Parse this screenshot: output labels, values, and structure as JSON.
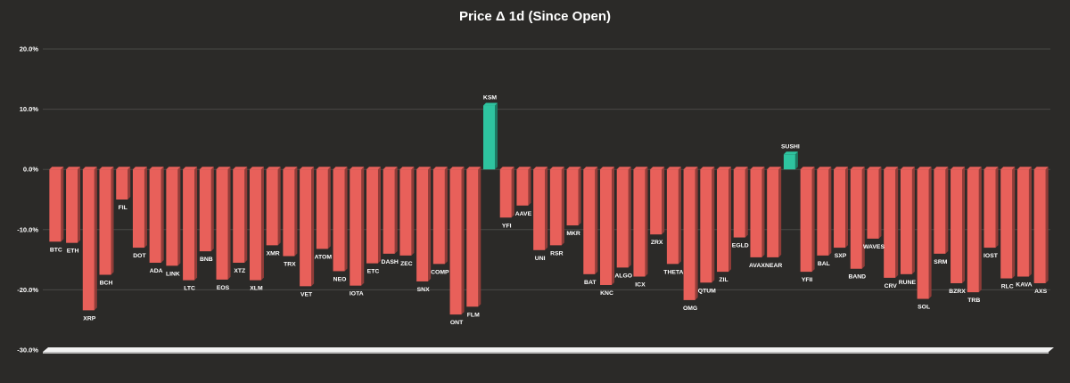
{
  "chart_data": {
    "type": "bar",
    "title": "Price Δ 1d (Since Open)",
    "xlabel": "",
    "ylabel": "",
    "ylim": [
      -30,
      20
    ],
    "yticks": [
      20,
      10,
      0,
      -10,
      -20,
      -30
    ],
    "ytick_labels": [
      "20.0%",
      "10.0%",
      "0.0%",
      "-10.0%",
      "-20.0%",
      "-30.0%"
    ],
    "grid": true,
    "colors": {
      "positive": "#2ec4a0",
      "negative": "#e8605a",
      "background": "#2b2a28"
    },
    "categories": [
      "BTC",
      "ETH",
      "XRP",
      "BCH",
      "FIL",
      "DOT",
      "ADA",
      "LINK",
      "LTC",
      "BNB",
      "EOS",
      "XTZ",
      "XLM",
      "XMR",
      "TRX",
      "VET",
      "ATOM",
      "NEO",
      "IOTA",
      "ETC",
      "DASH",
      "ZEC",
      "SNX",
      "COMP",
      "ONT",
      "FLM",
      "KSM",
      "YFI",
      "AAVE",
      "UNI",
      "RSR",
      "MKR",
      "BAT",
      "KNC",
      "ALGO",
      "ICX",
      "ZRX",
      "THETA",
      "OMG",
      "QTUM",
      "ZIL",
      "EGLD",
      "AVAX",
      "NEAR",
      "SUSHI",
      "YFII",
      "BAL",
      "SXP",
      "BAND",
      "WAVES",
      "CRV",
      "RUNE",
      "SOL",
      "SRM",
      "BZRX",
      "TRB",
      "IOST",
      "RLC",
      "KAVA",
      "AXS"
    ],
    "values": [
      -12.0,
      -12.2,
      -23.4,
      -17.5,
      -5.0,
      -13.0,
      -15.5,
      -16.0,
      -18.4,
      -13.6,
      -18.3,
      -15.5,
      -18.4,
      -12.6,
      -14.4,
      -19.4,
      -13.2,
      -16.9,
      -19.3,
      -15.6,
      -14.0,
      -14.3,
      -18.6,
      -15.7,
      -24.1,
      -22.8,
      10.6,
      -8.0,
      -6.0,
      -13.4,
      -12.6,
      -9.3,
      -17.4,
      -19.2,
      -16.3,
      -17.8,
      -10.8,
      -15.7,
      -21.7,
      -18.8,
      -17.0,
      -11.3,
      -14.6,
      -14.6,
      2.5,
      -17.0,
      -14.3,
      -13.0,
      -16.5,
      -11.5,
      -18.0,
      -17.4,
      -21.5,
      -14.0,
      -18.9,
      -20.4,
      -13.0,
      -18.1,
      -17.8,
      -18.9
    ]
  }
}
